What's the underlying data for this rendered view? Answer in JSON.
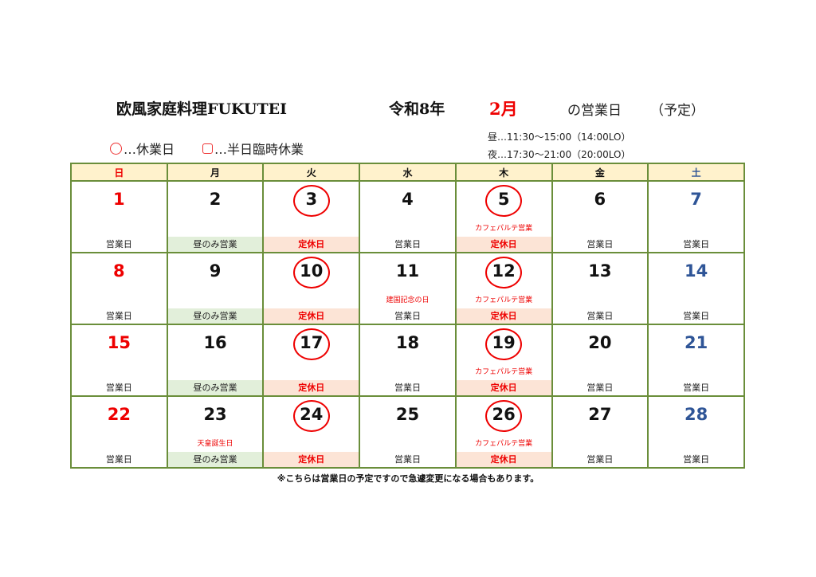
{
  "header": {
    "shop": "欧風家庭料理FUKUTEI",
    "era": "令和8年",
    "month": "2月",
    "suffix": "の営業日",
    "plan": "（予定）"
  },
  "legend": {
    "closed": "…休業日",
    "half": "…半日臨時休業"
  },
  "hours": {
    "lunch": "昼…11:30～15:00（14:00LO）",
    "dinner": "夜…17:30～21:00（20:00LO）"
  },
  "colors": {
    "sunday": "#ee0000",
    "saturday": "#2f5597",
    "weekday": "#111111",
    "circle": "#ee0000"
  },
  "weekdays": [
    "日",
    "月",
    "火",
    "水",
    "木",
    "金",
    "土"
  ],
  "weeks": [
    [
      {
        "day": "1",
        "status": "営業日",
        "type": "open"
      },
      {
        "day": "2",
        "status": "昼のみ営業",
        "type": "lunch"
      },
      {
        "day": "3",
        "status": "定休日",
        "type": "closed",
        "circled": true
      },
      {
        "day": "4",
        "status": "営業日",
        "type": "open"
      },
      {
        "day": "5",
        "note": "カフェパルテ営業",
        "status": "定休日",
        "type": "closed",
        "circled": true
      },
      {
        "day": "6",
        "status": "営業日",
        "type": "open"
      },
      {
        "day": "7",
        "status": "営業日",
        "type": "open"
      }
    ],
    [
      {
        "day": "8",
        "status": "営業日",
        "type": "open"
      },
      {
        "day": "9",
        "status": "昼のみ営業",
        "type": "lunch"
      },
      {
        "day": "10",
        "status": "定休日",
        "type": "closed",
        "circled": true
      },
      {
        "day": "11",
        "note": "建国記念の日",
        "status": "営業日",
        "type": "open"
      },
      {
        "day": "12",
        "note": "カフェパルテ営業",
        "status": "定休日",
        "type": "closed",
        "circled": true
      },
      {
        "day": "13",
        "status": "営業日",
        "type": "open"
      },
      {
        "day": "14",
        "status": "営業日",
        "type": "open"
      }
    ],
    [
      {
        "day": "15",
        "status": "営業日",
        "type": "open"
      },
      {
        "day": "16",
        "status": "昼のみ営業",
        "type": "lunch"
      },
      {
        "day": "17",
        "status": "定休日",
        "type": "closed",
        "circled": true
      },
      {
        "day": "18",
        "status": "営業日",
        "type": "open"
      },
      {
        "day": "19",
        "note": "カフェパルテ営業",
        "status": "定休日",
        "type": "closed",
        "circled": true
      },
      {
        "day": "20",
        "status": "営業日",
        "type": "open"
      },
      {
        "day": "21",
        "status": "営業日",
        "type": "open"
      }
    ],
    [
      {
        "day": "22",
        "status": "営業日",
        "type": "open"
      },
      {
        "day": "23",
        "note": "天皇誕生日",
        "status": "昼のみ営業",
        "type": "lunch"
      },
      {
        "day": "24",
        "status": "定休日",
        "type": "closed",
        "circled": true
      },
      {
        "day": "25",
        "status": "営業日",
        "type": "open"
      },
      {
        "day": "26",
        "note": "カフェパルテ営業",
        "status": "定休日",
        "type": "closed",
        "circled": true
      },
      {
        "day": "27",
        "status": "営業日",
        "type": "open"
      },
      {
        "day": "28",
        "status": "営業日",
        "type": "open"
      }
    ]
  ],
  "footer": "※こちらは営業日の予定ですので急遽変更になる場合もあります。"
}
